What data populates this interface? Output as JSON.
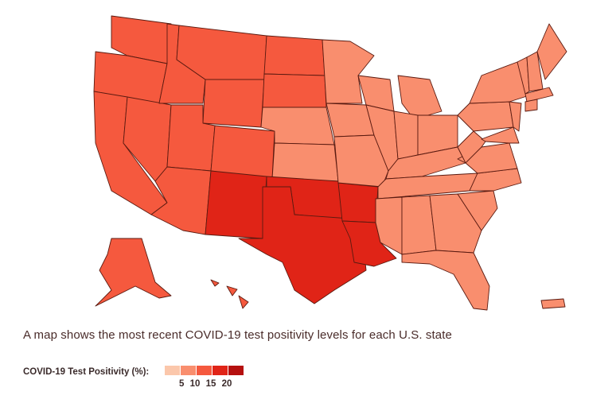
{
  "caption": "A map shows the most recent COVID-19 test positivity levels for each U.S. state",
  "legend": {
    "title": "COVID-19 Test Positivity (%):",
    "ticks": "5  10  15  20",
    "colors": [
      "#fbc7ab",
      "#f98e6e",
      "#f5593e",
      "#e02417",
      "#b5100f"
    ]
  },
  "colors": {
    "light": "#f98e6e",
    "medium": "#f5593e",
    "dark": "#e02417",
    "border": "#5a1a10"
  },
  "regions": {
    "west": "medium",
    "south_central": "dark",
    "east": "light",
    "central_plains": "light"
  }
}
